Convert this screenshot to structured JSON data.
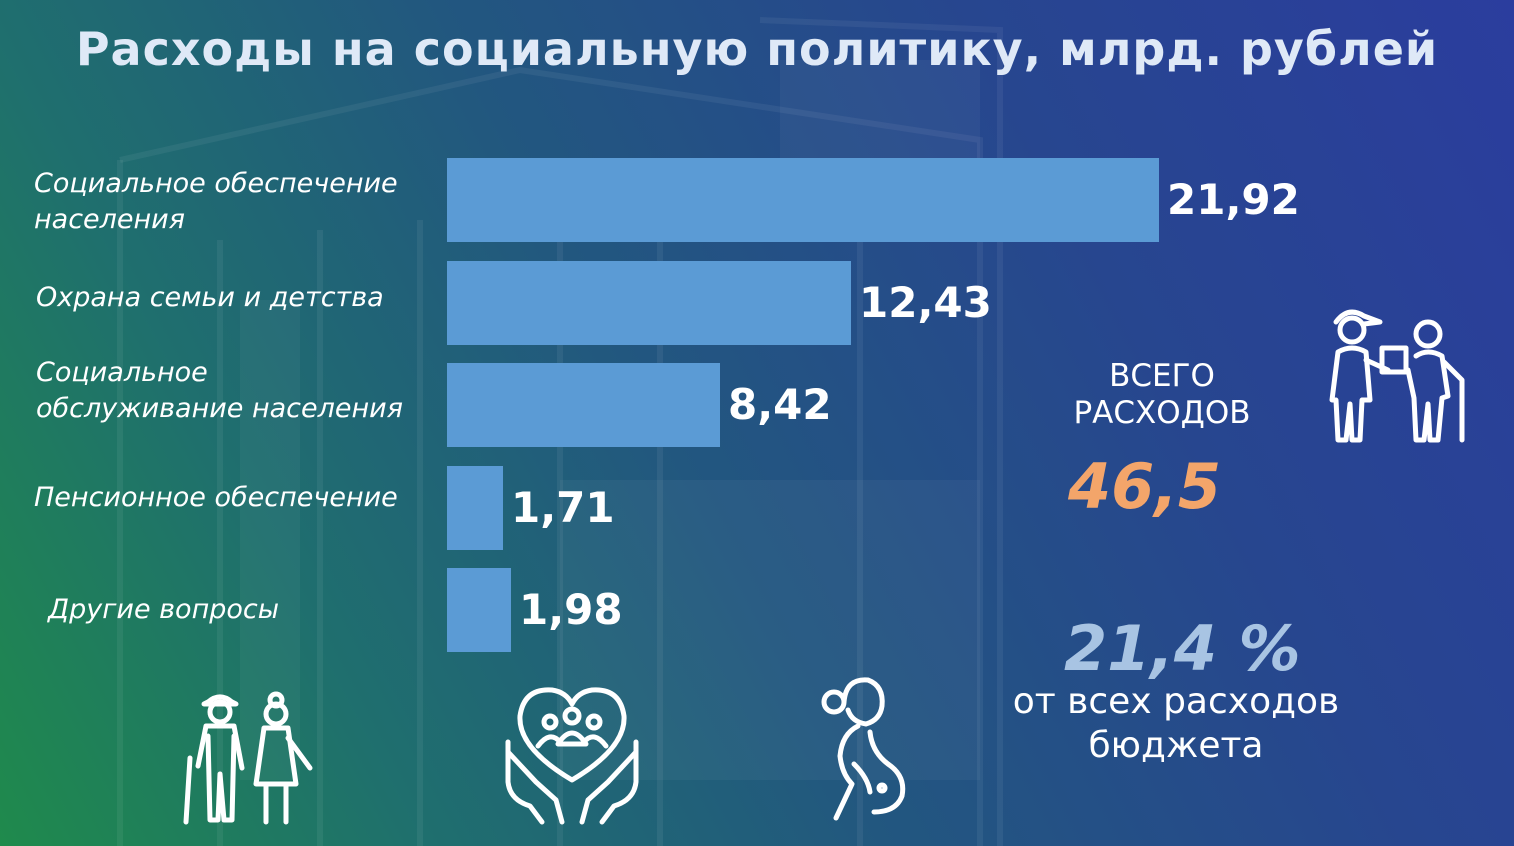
{
  "title": "Расходы на социальную политику, млрд. рублей",
  "chart_data": {
    "type": "bar",
    "orientation": "horizontal",
    "title": "Расходы на социальную политику, млрд. рублей",
    "categories": [
      "Социальное обеспечение\nнаселения",
      "Охрана семьи и детства",
      "Социальное\nобслуживание населения",
      "Пенсионное обеспечение",
      "Другие вопросы"
    ],
    "values": [
      21.92,
      12.43,
      8.42,
      1.71,
      1.98
    ],
    "value_labels": [
      "21,92",
      "12,43",
      "8,42",
      "1,71",
      "1,98"
    ],
    "xlim": [
      0,
      21.92
    ],
    "grid": false,
    "legend": "none",
    "bar_color": "#5b9bd5"
  },
  "summary": {
    "total_label": "ВСЕГО\nРАСХОДОВ",
    "total_value": "46,5",
    "share_value": "21,4 %",
    "share_label": "от всех расходов\nбюджета"
  },
  "icons": [
    "delivery-person-helping-elderly-icon",
    "elderly-couple-icon",
    "hands-holding-heart-family-icon",
    "pregnant-woman-icon"
  ],
  "colors": {
    "accent_total": "#f3a56a",
    "accent_share": "#a8c4e3",
    "bar": "#5b9bd5",
    "background_start": "#1f8a4c",
    "background_end": "#2b3d9e"
  }
}
